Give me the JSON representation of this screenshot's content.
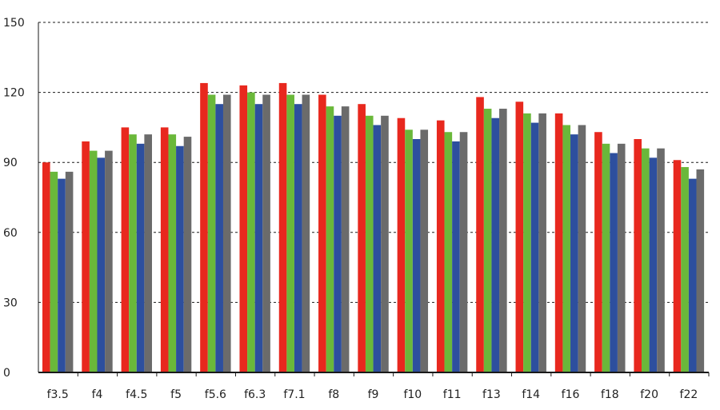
{
  "chart_data": {
    "type": "bar",
    "title": "",
    "xlabel": "",
    "ylabel": "",
    "ylim": [
      0,
      150
    ],
    "yticks": [
      0,
      30,
      60,
      90,
      120,
      150
    ],
    "grid": true,
    "legend": "none",
    "categories": [
      "f3.5",
      "f4",
      "f4.5",
      "f5",
      "f5.6",
      "f6.3",
      "f7.1",
      "f8",
      "f9",
      "f10",
      "f11",
      "f13",
      "f14",
      "f16",
      "f18",
      "f20",
      "f22"
    ],
    "series": [
      {
        "color": "#e8281e",
        "values": [
          90,
          99,
          105,
          105,
          124,
          123,
          124,
          119,
          115,
          109,
          108,
          118,
          116,
          111,
          103,
          100,
          91
        ]
      },
      {
        "color": "#6ab83a",
        "values": [
          86,
          95,
          102,
          102,
          119,
          120,
          119,
          114,
          110,
          104,
          103,
          113,
          111,
          106,
          98,
          96,
          88
        ]
      },
      {
        "color": "#2d4f9e",
        "values": [
          83,
          92,
          98,
          97,
          115,
          115,
          115,
          110,
          106,
          100,
          99,
          109,
          107,
          102,
          94,
          92,
          83
        ]
      },
      {
        "color": "#6b6b6b",
        "values": [
          86,
          95,
          102,
          101,
          119,
          119,
          119,
          114,
          110,
          104,
          103,
          113,
          111,
          106,
          98,
          96,
          87
        ]
      }
    ]
  }
}
